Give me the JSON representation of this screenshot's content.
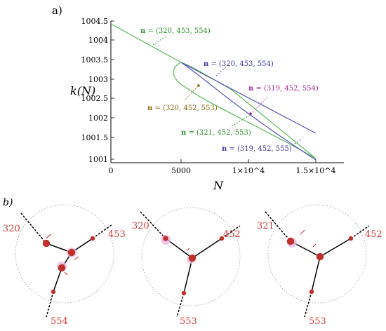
{
  "panel_a": {
    "label": "a)",
    "ylabel": "k(N)",
    "xlabel": "N",
    "xticks": [
      "0",
      "5000",
      "1×10^4",
      "1.5×10^4"
    ],
    "yticks": [
      "1001",
      "1001.5",
      "1002",
      "1002.5",
      "1003",
      "1003.5",
      "1004",
      "1004.5"
    ],
    "annotations": [
      {
        "id": "a1",
        "bold": "n",
        "text": " = (320, 453, 554)",
        "color": "#2e8b2e"
      },
      {
        "id": "a2",
        "bold": "n",
        "text": " = (320, 453, 554)",
        "color": "#3a3a9a"
      },
      {
        "id": "a3",
        "bold": "n",
        "text": " = (319, 452, 554)",
        "color": "#a02a9a"
      },
      {
        "id": "a4",
        "bold": "n",
        "text": " = (320, 452, 553)",
        "color": "#8a6a10"
      },
      {
        "id": "a5",
        "bold": "n",
        "text": " = (321, 452, 553)",
        "color": "#2e8b2e"
      },
      {
        "id": "a6",
        "bold": "n",
        "text": " = (319, 452, 555)",
        "color": "#3a3a9a"
      }
    ]
  },
  "chart_data": {
    "type": "line",
    "xlabel": "N",
    "ylabel": "k(N)",
    "xlim": [
      0,
      15000
    ],
    "ylim": [
      1000.9,
      1004.6
    ],
    "series": [
      {
        "color": "#5cb85c",
        "x": [
          0,
          5000,
          10000,
          15000
        ],
        "y": [
          1004.4,
          1003.5,
          1002.35,
          1001.1
        ]
      },
      {
        "color": "#5555b5",
        "x": [
          5000,
          10000,
          15000
        ],
        "y": [
          1003.45,
          1002.5,
          1001.6
        ]
      }
    ]
  },
  "panel_b": {
    "label": "b)",
    "stars": [
      {
        "left": "320",
        "right": "453",
        "bottom": "554"
      },
      {
        "left": "320",
        "right": "452",
        "bottom": "553"
      },
      {
        "left": "321",
        "right": "452",
        "bottom": "553"
      }
    ]
  },
  "colors": {
    "green": "#5cb85c",
    "blue": "#5555b5",
    "label_red": "#d04040",
    "dot_red": "#c0302a"
  }
}
